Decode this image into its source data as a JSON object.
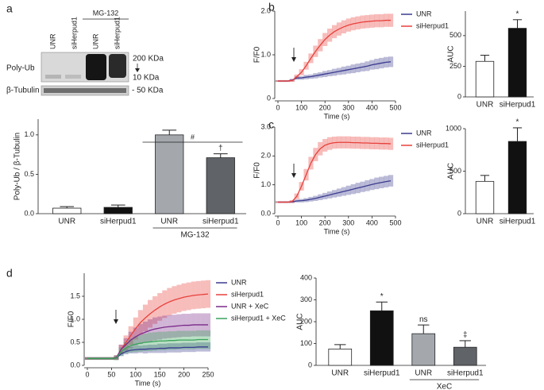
{
  "blot": {
    "panel": "a",
    "treatment": "MG-132",
    "lanes": [
      "UNR",
      "siHerpud1",
      "UNR",
      "siHerpud1"
    ],
    "rows": [
      "Poly-Ub",
      "β-Tubulin"
    ],
    "markers": [
      "200 KDa",
      "10 KDa",
      "- 50 KDa"
    ]
  },
  "chart_data": [
    {
      "type": "bar",
      "ylabel": "Poly-Ub / β-Tubulin",
      "categories": [
        "UNR",
        "siHerpud1",
        "UNR",
        "siHerpud1"
      ],
      "values": [
        0.07,
        0.08,
        1.0,
        0.71
      ],
      "errors": [
        0.02,
        0.03,
        0.06,
        0.05
      ],
      "colors": [
        "#ffffff",
        "#111111",
        "#a4a8ad",
        "#606367"
      ],
      "annotations": [
        null,
        null,
        null,
        "†"
      ],
      "bracket_label": "#",
      "group_label": "MG-132",
      "ylim": [
        0,
        1.2
      ],
      "yticks": [
        {
          "value": 0,
          "label": "0.0"
        },
        {
          "value": 0.5,
          "label": "0.5"
        },
        {
          "value": 1,
          "label": "1.0"
        }
      ]
    },
    {
      "type": "line",
      "panel": "b",
      "xlabel": "Time (s)",
      "ylabel": "F/F0",
      "x": [
        0,
        20,
        40,
        60,
        80,
        100,
        120,
        140,
        160,
        180,
        200,
        220,
        240,
        260,
        280,
        300,
        320,
        340,
        360,
        380,
        400,
        420,
        440,
        460,
        480
      ],
      "xlim": [
        0,
        500
      ],
      "xticks": [
        0,
        100,
        200,
        300,
        400,
        500
      ],
      "ylim": [
        0,
        2
      ],
      "yticks": [
        0,
        {
          "value": 1,
          "label": "1.0"
        },
        {
          "value": 2,
          "label": "2.0"
        }
      ],
      "series": [
        {
          "name": "UNR",
          "color": "#3b3b8f",
          "values": [
            0.4,
            0.4,
            0.4,
            0.42,
            0.47,
            0.47,
            0.49,
            0.5,
            0.52,
            0.54,
            0.56,
            0.58,
            0.6,
            0.62,
            0.64,
            0.66,
            0.68,
            0.7,
            0.72,
            0.74,
            0.77,
            0.79,
            0.81,
            0.83,
            0.84
          ],
          "errors": [
            0.02,
            0.02,
            0.02,
            0.03,
            0.04,
            0.04,
            0.05,
            0.05,
            0.06,
            0.06,
            0.07,
            0.07,
            0.08,
            0.08,
            0.09,
            0.09,
            0.1,
            0.1,
            0.1,
            0.11,
            0.11,
            0.12,
            0.12,
            0.12,
            0.12
          ]
        },
        {
          "name": "siHerpud1",
          "color": "#e8413c",
          "values": [
            0.4,
            0.4,
            0.4,
            0.41,
            0.5,
            0.6,
            0.75,
            0.92,
            1.08,
            1.22,
            1.35,
            1.45,
            1.53,
            1.59,
            1.64,
            1.68,
            1.71,
            1.73,
            1.75,
            1.76,
            1.77,
            1.78,
            1.78,
            1.79,
            1.79
          ],
          "errors": [
            0.02,
            0.02,
            0.02,
            0.03,
            0.05,
            0.07,
            0.09,
            0.11,
            0.13,
            0.14,
            0.15,
            0.15,
            0.15,
            0.15,
            0.15,
            0.15,
            0.15,
            0.15,
            0.15,
            0.15,
            0.15,
            0.15,
            0.15,
            0.15,
            0.15
          ]
        }
      ]
    },
    {
      "type": "bar",
      "ylabel": "AUC",
      "categories": [
        "UNR",
        "siHerpud1"
      ],
      "values": [
        290,
        560
      ],
      "errors": [
        50,
        70
      ],
      "colors": [
        "#ffffff",
        "#111111"
      ],
      "annotations": [
        null,
        "*"
      ],
      "ylim": [
        0,
        700
      ],
      "yticks": [
        0,
        250,
        500
      ]
    },
    {
      "type": "line",
      "panel": "c",
      "xlabel": "Time (s)",
      "ylabel": "F/F0",
      "x": [
        0,
        20,
        40,
        60,
        80,
        100,
        120,
        140,
        160,
        180,
        200,
        220,
        240,
        260,
        280,
        300,
        320,
        340,
        360,
        380,
        400,
        420,
        440,
        460,
        480
      ],
      "xlim": [
        0,
        500
      ],
      "xticks": [
        0,
        100,
        200,
        300,
        400,
        500
      ],
      "ylim": [
        0,
        3
      ],
      "yticks": [
        {
          "value": 0,
          "label": "0.0"
        },
        {
          "value": 1,
          "label": "1.0"
        },
        {
          "value": 2,
          "label": "2.0"
        },
        {
          "value": 3,
          "label": "3.0"
        }
      ],
      "series": [
        {
          "name": "UNR",
          "color": "#3b3b8f",
          "values": [
            0.4,
            0.4,
            0.4,
            0.41,
            0.44,
            0.45,
            0.47,
            0.5,
            0.53,
            0.57,
            0.61,
            0.65,
            0.69,
            0.73,
            0.77,
            0.81,
            0.85,
            0.89,
            0.93,
            0.97,
            1.01,
            1.05,
            1.08,
            1.11,
            1.14
          ],
          "errors": [
            0.03,
            0.03,
            0.03,
            0.04,
            0.05,
            0.06,
            0.07,
            0.08,
            0.09,
            0.1,
            0.11,
            0.12,
            0.13,
            0.14,
            0.15,
            0.16,
            0.17,
            0.18,
            0.18,
            0.19,
            0.19,
            0.2,
            0.2,
            0.2,
            0.2
          ]
        },
        {
          "name": "siHerpud1",
          "color": "#e8413c",
          "values": [
            0.4,
            0.4,
            0.4,
            0.42,
            0.6,
            0.95,
            1.35,
            1.75,
            2.05,
            2.25,
            2.37,
            2.43,
            2.46,
            2.47,
            2.47,
            2.47,
            2.46,
            2.46,
            2.45,
            2.45,
            2.44,
            2.44,
            2.43,
            2.43,
            2.42
          ],
          "errors": [
            0.03,
            0.03,
            0.03,
            0.05,
            0.1,
            0.15,
            0.2,
            0.22,
            0.23,
            0.23,
            0.22,
            0.22,
            0.21,
            0.21,
            0.21,
            0.21,
            0.21,
            0.21,
            0.21,
            0.21,
            0.21,
            0.21,
            0.21,
            0.21,
            0.21
          ]
        }
      ]
    },
    {
      "type": "bar",
      "ylabel": "AUC",
      "categories": [
        "UNR",
        "siHerpud1"
      ],
      "values": [
        380,
        850
      ],
      "errors": [
        70,
        160
      ],
      "colors": [
        "#ffffff",
        "#111111"
      ],
      "annotations": [
        null,
        "*"
      ],
      "ylim": [
        0,
        1000
      ],
      "yticks": [
        0,
        500,
        1000
      ]
    },
    {
      "type": "line",
      "panel": "d",
      "xlabel": "Time (s)",
      "ylabel": "F/F0",
      "x": [
        0,
        10,
        20,
        30,
        40,
        50,
        60,
        70,
        80,
        90,
        100,
        110,
        120,
        130,
        140,
        150,
        160,
        170,
        180,
        190,
        200,
        210,
        220,
        230,
        240,
        250
      ],
      "xlim": [
        0,
        250
      ],
      "xticks": [
        0,
        50,
        100,
        150,
        200,
        250
      ],
      "ylim": [
        0,
        2
      ],
      "yticks": [
        {
          "value": 0,
          "label": "0.0"
        },
        {
          "value": 0.5,
          "label": "0.5"
        },
        {
          "value": 1,
          "label": "1.0"
        },
        {
          "value": 1.5,
          "label": "1.5"
        }
      ],
      "series": [
        {
          "name": "UNR",
          "color": "#3b3b8f",
          "values": [
            0.15,
            0.15,
            0.15,
            0.15,
            0.15,
            0.15,
            0.16,
            0.25,
            0.3,
            0.33,
            0.34,
            0.35,
            0.35,
            0.36,
            0.36,
            0.37,
            0.37,
            0.38,
            0.38,
            0.38,
            0.39,
            0.39,
            0.39,
            0.4,
            0.4,
            0.4
          ],
          "errors": [
            0.02,
            0.02,
            0.02,
            0.02,
            0.02,
            0.02,
            0.03,
            0.05,
            0.06,
            0.07,
            0.08,
            0.08,
            0.09,
            0.09,
            0.09,
            0.1,
            0.1,
            0.1,
            0.1,
            0.1,
            0.1,
            0.1,
            0.1,
            0.1,
            0.1,
            0.1
          ]
        },
        {
          "name": "siHerpud1",
          "color": "#e8413c",
          "values": [
            0.15,
            0.15,
            0.15,
            0.15,
            0.15,
            0.15,
            0.17,
            0.35,
            0.5,
            0.65,
            0.8,
            0.93,
            1.03,
            1.12,
            1.2,
            1.27,
            1.33,
            1.38,
            1.42,
            1.45,
            1.48,
            1.5,
            1.52,
            1.53,
            1.54,
            1.55
          ],
          "errors": [
            0.03,
            0.03,
            0.03,
            0.03,
            0.03,
            0.03,
            0.05,
            0.1,
            0.15,
            0.2,
            0.24,
            0.27,
            0.29,
            0.3,
            0.3,
            0.3,
            0.3,
            0.3,
            0.3,
            0.3,
            0.3,
            0.3,
            0.3,
            0.3,
            0.3,
            0.3
          ]
        },
        {
          "name": "UNR + XeC",
          "color": "#7a2a8a",
          "values": [
            0.15,
            0.15,
            0.15,
            0.15,
            0.15,
            0.15,
            0.17,
            0.35,
            0.45,
            0.55,
            0.62,
            0.68,
            0.72,
            0.76,
            0.79,
            0.81,
            0.83,
            0.84,
            0.85,
            0.86,
            0.87,
            0.87,
            0.88,
            0.88,
            0.88,
            0.88
          ],
          "errors": [
            0.03,
            0.03,
            0.03,
            0.03,
            0.03,
            0.03,
            0.05,
            0.1,
            0.14,
            0.18,
            0.2,
            0.22,
            0.23,
            0.24,
            0.25,
            0.25,
            0.25,
            0.25,
            0.25,
            0.25,
            0.25,
            0.25,
            0.25,
            0.25,
            0.25,
            0.25
          ]
        },
        {
          "name": "siHerpud1 + XeC",
          "color": "#3aa35a",
          "values": [
            0.15,
            0.15,
            0.15,
            0.15,
            0.15,
            0.15,
            0.16,
            0.3,
            0.38,
            0.43,
            0.46,
            0.48,
            0.5,
            0.51,
            0.52,
            0.53,
            0.53,
            0.54,
            0.54,
            0.55,
            0.55,
            0.55,
            0.55,
            0.56,
            0.56,
            0.56
          ],
          "errors": [
            0.03,
            0.03,
            0.03,
            0.03,
            0.03,
            0.03,
            0.05,
            0.09,
            0.12,
            0.15,
            0.17,
            0.18,
            0.19,
            0.2,
            0.2,
            0.2,
            0.2,
            0.2,
            0.2,
            0.2,
            0.2,
            0.2,
            0.2,
            0.2,
            0.2,
            0.2
          ]
        }
      ]
    },
    {
      "type": "bar",
      "ylabel": "AUC",
      "categories": [
        "UNR",
        "siHerpud1",
        "UNR",
        "siHerpud1"
      ],
      "values": [
        75,
        250,
        145,
        83
      ],
      "errors": [
        20,
        40,
        40,
        30
      ],
      "colors": [
        "#ffffff",
        "#111111",
        "#a4a8ad",
        "#606367"
      ],
      "annotations": [
        null,
        "*",
        "ns",
        "‡"
      ],
      "group_label": "XeC",
      "ylim": [
        0,
        400
      ],
      "yticks": [
        0,
        100,
        200,
        300,
        400
      ]
    }
  ]
}
